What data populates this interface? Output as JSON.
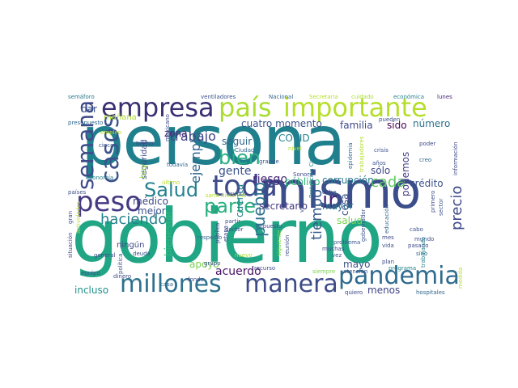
{
  "words": [
    {
      "id": "persona",
      "text": "persona",
      "color": "#1f7f8c"
    },
    {
      "id": "gobierno",
      "text": "gobierno",
      "color": "#21a685"
    },
    {
      "id": "mismo",
      "text": "mismo",
      "color": "#3b4d8a"
    },
    {
      "id": "pais",
      "text": "país",
      "color": "#aadc32"
    },
    {
      "id": "importante",
      "text": "importante",
      "color": "#b5de2b"
    },
    {
      "id": "empresa",
      "text": "empresa",
      "color": "#3b2f73"
    },
    {
      "id": "pandemia",
      "text": "pandemia",
      "color": "#2f6b8e"
    },
    {
      "id": "manera",
      "text": "manera",
      "color": "#3d4c89"
    },
    {
      "id": "millones",
      "text": "millones",
      "color": "#2d718e"
    },
    {
      "id": "toda",
      "text": "toda",
      "color": "#3f4a8a"
    },
    {
      "id": "salud",
      "text": "Salud",
      "color": "#26828e"
    },
    {
      "id": "peso",
      "text": "peso",
      "color": "#443983"
    },
    {
      "id": "parte",
      "text": "parte",
      "color": "#2ab07f"
    },
    {
      "id": "casos",
      "text": "casos",
      "color": "#3b528b"
    },
    {
      "id": "semana",
      "text": "semana",
      "color": "#3e4a89"
    },
    {
      "id": "bien",
      "text": "bien",
      "color": "#27ad81"
    },
    {
      "id": "pueblo",
      "text": "pueblo",
      "color": "#2c728e"
    },
    {
      "id": "ir",
      "text": "ir",
      "color": "#482576"
    },
    {
      "id": "tiempo",
      "text": "tiempo",
      "color": "#365c8d"
    },
    {
      "id": "cada",
      "text": "cada",
      "color": "#5ec962"
    },
    {
      "id": "precio",
      "text": "precio",
      "color": "#3e4989"
    },
    {
      "id": "haciendo",
      "text": "haciendo",
      "color": "#26828e"
    },
    {
      "id": "trabajo",
      "text": "trabajo",
      "color": "#404588"
    },
    {
      "id": "ejemplo",
      "text": "ejemplo",
      "color": "#31688e"
    },
    {
      "id": "cuatro_momento",
      "text": "cuatro momento",
      "color": "#3b528b"
    },
    {
      "id": "familia",
      "text": "familia",
      "color": "#3e4a89"
    },
    {
      "id": "sido",
      "text": "sido",
      "color": "#440154"
    },
    {
      "id": "numero",
      "text": "número",
      "color": "#2c728e"
    },
    {
      "id": "seguir",
      "text": "seguir",
      "color": "#31688e"
    },
    {
      "id": "covid",
      "text": "COVID",
      "color": "#26828e"
    },
    {
      "id": "gente",
      "text": "gente",
      "color": "#3b528b"
    },
    {
      "id": "riesgo",
      "text": "riesgo",
      "color": "#482878"
    },
    {
      "id": "publico",
      "text": "público",
      "color": "#35b779"
    },
    {
      "id": "corrupcion",
      "text": "corrupción",
      "color": "#2a788e"
    },
    {
      "id": "solo",
      "text": "sólo",
      "color": "#3e4989"
    },
    {
      "id": "podemos",
      "text": "podemos",
      "color": "#433e85"
    },
    {
      "id": "credito",
      "text": "crédito",
      "color": "#3b528b"
    },
    {
      "id": "acuerdo",
      "text": "acuerdo",
      "color": "#471164"
    },
    {
      "id": "secretario",
      "text": "secretario",
      "color": "#443a83"
    },
    {
      "id": "mayor",
      "text": "mayor",
      "color": "#2c728e"
    },
    {
      "id": "cosa",
      "text": "cosa",
      "color": "#3b528b"
    },
    {
      "id": "cuenta",
      "text": "cuenta",
      "color": "#26828e"
    },
    {
      "id": "apoyo",
      "text": "apoyo",
      "color": "#7ad151"
    },
    {
      "id": "medico",
      "text": "médico",
      "color": "#3e4989"
    },
    {
      "id": "mejor",
      "text": "mejor",
      "color": "#3b528b"
    },
    {
      "id": "zona",
      "text": "zona",
      "color": "#472c7a"
    },
    {
      "id": "incluso",
      "text": "incluso",
      "color": "#21918c"
    },
    {
      "id": "bienestar",
      "text": "bienestar",
      "color": "#35b779"
    },
    {
      "id": "mayo",
      "text": "mayo",
      "color": "#3b528b"
    },
    {
      "id": "menos",
      "text": "menos",
      "color": "#414487"
    },
    {
      "id": "salud2",
      "text": "salud",
      "color": "#7ad151"
    },
    {
      "id": "manana",
      "text": "mañana",
      "color": "#addc30"
    },
    {
      "id": "dar",
      "text": "dar",
      "color": "#3b528b"
    },
    {
      "id": "seguridad",
      "text": "seguridad",
      "color": "#3e4989"
    },
    {
      "id": "hoy",
      "text": "hoy",
      "color": "#95d840"
    },
    {
      "id": "ningun",
      "text": "ningún",
      "color": "#3e4989"
    },
    {
      "id": "semaforo",
      "text": "semáforo",
      "color": "#2a788e"
    },
    {
      "id": "ventiladores",
      "text": "ventiladores",
      "color": "#3b528b"
    },
    {
      "id": "nacional",
      "text": "Nacional",
      "color": "#31688e"
    },
    {
      "id": "secretaria",
      "text": "Secretaria",
      "color": "#b5de2b"
    },
    {
      "id": "cuidado",
      "text": "cuidado",
      "color": "#aadc32"
    },
    {
      "id": "economica",
      "text": "económica",
      "color": "#26828e"
    },
    {
      "id": "lunes",
      "text": "lunes",
      "color": "#482677"
    },
    {
      "id": "presupuesto",
      "text": "presupuesto",
      "color": "#31688e"
    },
    {
      "id": "empleo",
      "text": "empleo",
      "color": "#b5de2b"
    },
    {
      "id": "cinco",
      "text": "cinco",
      "color": "#3b528b"
    },
    {
      "id": "hecho",
      "text": "hecho",
      "color": "#3e4989"
    },
    {
      "id": "ciudad",
      "text": "Ciudad",
      "color": "#31688e"
    },
    {
      "id": "nivel",
      "text": "nivel",
      "color": "#b5de2b"
    },
    {
      "id": "crisis",
      "text": "crisis",
      "color": "#3b528b"
    },
    {
      "id": "poder",
      "text": "poder",
      "color": "#3e4989"
    },
    {
      "id": "anos",
      "text": "años",
      "color": "#3b528b"
    },
    {
      "id": "creo",
      "text": "creo",
      "color": "#31688e"
    },
    {
      "id": "economia",
      "text": "economía",
      "color": "#26828e"
    },
    {
      "id": "paises",
      "text": "países",
      "color": "#3b528b"
    },
    {
      "id": "grande",
      "text": "grande",
      "color": "#3b528b"
    },
    {
      "id": "sonora",
      "text": "Sonora",
      "color": "#3e4989"
    },
    {
      "id": "debe",
      "text": "debe",
      "color": "#3b528b"
    },
    {
      "id": "vez",
      "text": "vez",
      "color": "#3b528b"
    },
    {
      "id": "muchas",
      "text": "muchas",
      "color": "#3e4989"
    },
    {
      "id": "todavia",
      "text": "todavía",
      "color": "#31688e"
    },
    {
      "id": "cabo",
      "text": "cabo",
      "color": "#3b528b"
    },
    {
      "id": "mes",
      "text": "mes",
      "color": "#3e4989"
    },
    {
      "id": "vida",
      "text": "vida",
      "color": "#3b528b"
    },
    {
      "id": "pasado",
      "text": "pasado",
      "color": "#3e4989"
    },
    {
      "id": "sino",
      "text": "sino",
      "color": "#31688e"
    },
    {
      "id": "problema",
      "text": "problema",
      "color": "#3b528b"
    },
    {
      "id": "plan",
      "text": "plan",
      "color": "#3e4989"
    },
    {
      "id": "programa",
      "text": "programa",
      "color": "#26828e"
    },
    {
      "id": "atencion",
      "text": "atención",
      "color": "#3b528b"
    },
    {
      "id": "quiero",
      "text": "quiero",
      "color": "#3e4989"
    },
    {
      "id": "hospitales",
      "text": "hospitales",
      "color": "#31688e"
    },
    {
      "id": "mundo",
      "text": "mundo",
      "color": "#3b528b"
    },
    {
      "id": "recurso",
      "text": "recurso",
      "color": "#3e4989"
    },
    {
      "id": "siempre",
      "text": "siempre",
      "color": "#7ad151"
    },
    {
      "id": "grupo",
      "text": "grupo",
      "color": "#3b528b"
    },
    {
      "id": "fondo",
      "text": "fondo",
      "color": "#3e4989"
    },
    {
      "id": "partir",
      "text": "partir",
      "color": "#3b528b"
    },
    {
      "id": "doctor",
      "text": "doctor",
      "color": "#3b528b"
    },
    {
      "id": "impuesto",
      "text": "impuesto",
      "color": "#3e4989"
    },
    {
      "id": "respecto",
      "text": "respecto",
      "color": "#31688e"
    },
    {
      "id": "deuda",
      "text": "deuda",
      "color": "#3b528b"
    },
    {
      "id": "dinero",
      "text": "dinero",
      "color": "#3e4989"
    },
    {
      "id": "equipo",
      "text": "equipo",
      "color": "#3b528b"
    },
    {
      "id": "casa",
      "text": "casa",
      "color": "#31688e"
    },
    {
      "id": "nuevo",
      "text": "nuevo",
      "color": "#b5de2b"
    },
    {
      "id": "sana_distancia",
      "text": "sana distancia",
      "color": "#b5de2b"
    },
    {
      "id": "pueden",
      "text": "pueden",
      "color": "#3b528b"
    },
    {
      "id": "general",
      "text": "general",
      "color": "#3e4989"
    },
    {
      "id": "ultimo",
      "text": "último",
      "color": "#b5de2b"
    },
    {
      "id": "asunto",
      "text": "asunto",
      "color": "#3b528b"
    },
    {
      "id": "educacion",
      "text": "educación",
      "color": "#31688e"
    },
    {
      "id": "situacion",
      "text": "situación",
      "color": "#3e4989"
    },
    {
      "id": "actividades",
      "text": "actividades",
      "color": "#b5de2b"
    },
    {
      "id": "gran",
      "text": "gran",
      "color": "#3b528b"
    },
    {
      "id": "politica",
      "text": "política",
      "color": "#3b528b"
    },
    {
      "id": "mexicano",
      "text": "mexicano",
      "color": "#3e4989"
    },
    {
      "id": "epidemia",
      "text": "epidemia",
      "color": "#31688e"
    },
    {
      "id": "trabajadores",
      "text": "trabajadores",
      "color": "#b5de2b"
    },
    {
      "id": "gobernador",
      "text": "gobernador",
      "color": "#3b528b"
    },
    {
      "id": "trabajando",
      "text": "trabajando",
      "color": "#26828e"
    },
    {
      "id": "primero",
      "text": "primero",
      "color": "#3e4989"
    },
    {
      "id": "sector",
      "text": "sector",
      "color": "#3b528b"
    },
    {
      "id": "informacion",
      "text": "información",
      "color": "#3e4989"
    },
    {
      "id": "publica",
      "text": "pública",
      "color": "#3b528b"
    },
    {
      "id": "etapa",
      "text": "etapa",
      "color": "#3e4989"
    },
    {
      "id": "siguiente",
      "text": "siguiente",
      "color": "#7ad151"
    },
    {
      "id": "reunion",
      "text": "reunión",
      "color": "#3b528b"
    },
    {
      "id": "proteccion_civil",
      "text": "Protección Civil",
      "color": "#26828e"
    },
    {
      "id": "veces",
      "text": "veces",
      "color": "#3b528b"
    },
    {
      "id": "medida",
      "text": "medida",
      "color": "#b5de2b"
    }
  ]
}
